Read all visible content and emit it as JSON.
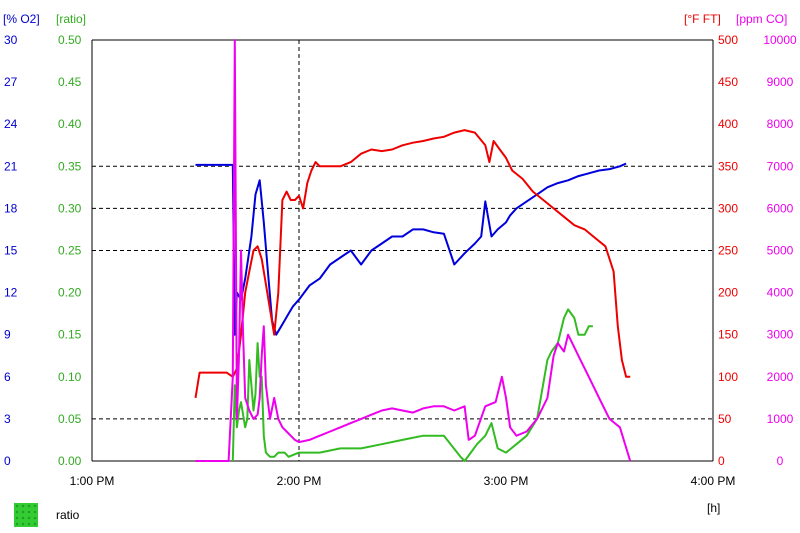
{
  "chart_data": {
    "type": "line",
    "xlabel": "[h]",
    "x_ticks": [
      "1:00 PM",
      "2:00 PM",
      "3:00 PM",
      "4:00 PM"
    ],
    "xlim": [
      13.0,
      16.0
    ],
    "axes": [
      {
        "label": "[% O2]",
        "side": "left",
        "color": "#0000cc",
        "ylim": [
          0,
          30
        ],
        "ticks": [
          "0",
          "3",
          "6",
          "9",
          "12",
          "15",
          "18",
          "21",
          "24",
          "27",
          "30"
        ]
      },
      {
        "label": "[ratio]",
        "side": "left",
        "color": "#33aa22",
        "ylim": [
          0,
          0.5
        ],
        "ticks": [
          "0.00",
          "0.05",
          "0.10",
          "0.15",
          "0.20",
          "0.25",
          "0.30",
          "0.35",
          "0.40",
          "0.45",
          "0.50"
        ]
      },
      {
        "label": "[°F FT]",
        "side": "right",
        "color": "#ee0000",
        "ylim": [
          0,
          500
        ],
        "ticks": [
          "0",
          "50",
          "100",
          "150",
          "200",
          "250",
          "300",
          "350",
          "400",
          "450",
          "500"
        ]
      },
      {
        "label": "[ppm CO]",
        "side": "right",
        "color": "#ee00ee",
        "ylim": [
          0,
          10000
        ],
        "ticks": [
          "0",
          "1000",
          "2000",
          "3000",
          "4000",
          "5000",
          "6000",
          "7000",
          "8000",
          "9000",
          "10000"
        ]
      }
    ],
    "grid": {
      "dashed_horizontal_at_ratio": [
        0.05,
        0.25,
        0.3,
        0.35
      ],
      "dashed_vertical_at_x": 14.0
    },
    "series": [
      {
        "axis": 0,
        "color": "#0000dd",
        "x": [
          13.5,
          13.68,
          13.69,
          13.7,
          13.72,
          13.74,
          13.77,
          13.79,
          13.81,
          13.83,
          13.85,
          13.87,
          13.89,
          13.91,
          13.93,
          13.95,
          13.97,
          14.0,
          14.05,
          14.1,
          14.15,
          14.2,
          14.25,
          14.3,
          14.35,
          14.4,
          14.45,
          14.5,
          14.55,
          14.6,
          14.65,
          14.7,
          14.75,
          14.8,
          14.85,
          14.88,
          14.9,
          14.93,
          14.96,
          15.0,
          15.02,
          15.05,
          15.1,
          15.15,
          15.2,
          15.25,
          15.3,
          15.35,
          15.4,
          15.45,
          15.5,
          15.55,
          15.58
        ],
        "values": [
          21.1,
          21.1,
          9.0,
          12.0,
          11.5,
          13.0,
          16.0,
          19.0,
          20.0,
          17.0,
          13.5,
          10.0,
          9.0,
          9.5,
          10.0,
          10.5,
          11.0,
          11.5,
          12.5,
          13.0,
          14.0,
          14.5,
          15.0,
          14.0,
          15.0,
          15.5,
          16.0,
          16.0,
          16.5,
          16.5,
          16.3,
          16.2,
          14.0,
          14.8,
          15.5,
          16.0,
          18.5,
          16.0,
          16.5,
          17.0,
          17.5,
          18.0,
          18.5,
          19.0,
          19.5,
          19.8,
          20.0,
          20.3,
          20.5,
          20.7,
          20.8,
          21.0,
          21.2
        ]
      },
      {
        "axis": 1,
        "color": "#33bb22",
        "x": [
          13.68,
          13.69,
          13.7,
          13.71,
          13.72,
          13.74,
          13.75,
          13.76,
          13.78,
          13.79,
          13.8,
          13.81,
          13.82,
          13.83,
          13.84,
          13.86,
          13.88,
          13.9,
          13.93,
          13.95,
          14.0,
          14.1,
          14.2,
          14.3,
          14.4,
          14.5,
          14.6,
          14.7,
          14.78,
          14.8,
          14.83,
          14.86,
          14.9,
          14.93,
          14.96,
          15.0,
          15.05,
          15.1,
          15.15,
          15.2,
          15.22,
          15.25,
          15.28,
          15.3,
          15.33,
          15.35,
          15.38,
          15.4,
          15.42
        ],
        "values": [
          0.0,
          0.09,
          0.04,
          0.06,
          0.07,
          0.04,
          0.05,
          0.12,
          0.06,
          0.08,
          0.14,
          0.1,
          0.1,
          0.03,
          0.01,
          0.005,
          0.005,
          0.01,
          0.01,
          0.005,
          0.01,
          0.01,
          0.015,
          0.015,
          0.02,
          0.025,
          0.03,
          0.03,
          0.005,
          0.0,
          0.01,
          0.02,
          0.03,
          0.045,
          0.015,
          0.01,
          0.02,
          0.03,
          0.05,
          0.12,
          0.13,
          0.14,
          0.17,
          0.18,
          0.17,
          0.15,
          0.15,
          0.16,
          0.16
        ]
      },
      {
        "axis": 2,
        "color": "#ee0000",
        "x": [
          13.5,
          13.52,
          13.55,
          13.6,
          13.65,
          13.68,
          13.7,
          13.72,
          13.74,
          13.76,
          13.78,
          13.8,
          13.82,
          13.84,
          13.86,
          13.88,
          13.9,
          13.92,
          13.94,
          13.96,
          13.98,
          14.0,
          14.02,
          14.04,
          14.06,
          14.08,
          14.1,
          14.15,
          14.2,
          14.25,
          14.3,
          14.35,
          14.4,
          14.45,
          14.5,
          14.55,
          14.6,
          14.65,
          14.7,
          14.75,
          14.8,
          14.85,
          14.9,
          14.92,
          14.94,
          14.97,
          15.0,
          15.03,
          15.08,
          15.13,
          15.18,
          15.23,
          15.28,
          15.33,
          15.38,
          15.43,
          15.48,
          15.52,
          15.54,
          15.56,
          15.58,
          15.6
        ],
        "values": [
          75,
          105,
          105,
          105,
          105,
          100,
          110,
          150,
          200,
          225,
          250,
          255,
          240,
          210,
          180,
          150,
          200,
          310,
          320,
          310,
          310,
          315,
          300,
          330,
          345,
          355,
          350,
          350,
          350,
          355,
          365,
          370,
          368,
          370,
          375,
          378,
          380,
          383,
          385,
          390,
          393,
          390,
          375,
          355,
          380,
          370,
          360,
          345,
          335,
          320,
          310,
          300,
          290,
          280,
          275,
          265,
          255,
          225,
          160,
          120,
          100,
          100
        ]
      },
      {
        "axis": 3,
        "color": "#ee00ee",
        "x": [
          13.5,
          13.6,
          13.66,
          13.68,
          13.69,
          13.7,
          13.71,
          13.72,
          13.73,
          13.74,
          13.76,
          13.78,
          13.8,
          13.81,
          13.82,
          13.83,
          13.84,
          13.86,
          13.88,
          13.9,
          13.92,
          13.94,
          13.96,
          13.98,
          14.0,
          14.05,
          14.1,
          14.15,
          14.2,
          14.25,
          14.3,
          14.35,
          14.4,
          14.45,
          14.5,
          14.55,
          14.6,
          14.65,
          14.7,
          14.75,
          14.8,
          14.82,
          14.85,
          14.9,
          14.95,
          14.98,
          15.0,
          15.02,
          15.05,
          15.1,
          15.15,
          15.2,
          15.23,
          15.25,
          15.28,
          15.3,
          15.33,
          15.35,
          15.4,
          15.45,
          15.5,
          15.55,
          15.6
        ],
        "values": [
          0,
          0,
          0,
          2000,
          10000,
          1000,
          2500,
          5000,
          3000,
          1500,
          1200,
          1000,
          1100,
          1500,
          2500,
          3200,
          1800,
          1000,
          1500,
          1000,
          800,
          700,
          600,
          500,
          450,
          500,
          600,
          700,
          800,
          900,
          1000,
          1100,
          1200,
          1250,
          1200,
          1150,
          1250,
          1300,
          1300,
          1200,
          1300,
          500,
          600,
          1300,
          1400,
          2000,
          1500,
          800,
          600,
          700,
          1000,
          1500,
          2500,
          2800,
          2600,
          3000,
          2700,
          2500,
          2000,
          1500,
          1000,
          800,
          0
        ]
      }
    ]
  }
}
